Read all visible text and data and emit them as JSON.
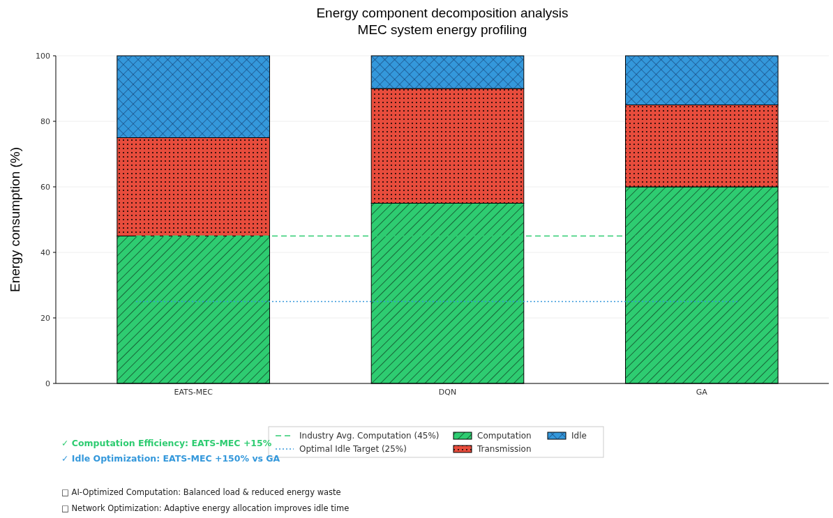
{
  "chart_data": {
    "type": "bar",
    "stacked": true,
    "title": "Energy component decomposition analysis\nMEC system energy profiling",
    "ylabel": "Energy consumption (%)",
    "categories": [
      "EATS-MEC",
      "DQN",
      "GA"
    ],
    "series": [
      {
        "name": "Computation",
        "color": "#2ecc71",
        "values": [
          45,
          55,
          60
        ]
      },
      {
        "name": "Transmission",
        "color": "#e74c3c",
        "values": [
          30,
          35,
          25
        ]
      },
      {
        "name": "Idle",
        "color": "#3498db",
        "values": [
          25,
          10,
          15
        ]
      }
    ],
    "ylim": [
      0,
      100
    ],
    "yticks": [
      0,
      20,
      40,
      60,
      80,
      100
    ],
    "grid": "y",
    "legend": "bottom",
    "ref_lines": [
      {
        "axis": "y",
        "value": 45,
        "label": "Industry Avg. Computation (45%)",
        "color": "#2ecc71",
        "line_style": "dashed"
      },
      {
        "axis": "y",
        "value": 25,
        "label": "Optimal Idle Target (25%)",
        "color": "#3498db",
        "line_style": "dotted"
      }
    ],
    "annotations": [
      "✓ Computation Efficiency: EATS-MEC +15%",
      "✓ Idle Optimization: EATS-MEC +150% vs GA",
      "□ AI-Optimized Computation: Balanced load & reduced energy waste",
      "□ Network Optimization: Adaptive energy allocation improves idle time"
    ]
  }
}
